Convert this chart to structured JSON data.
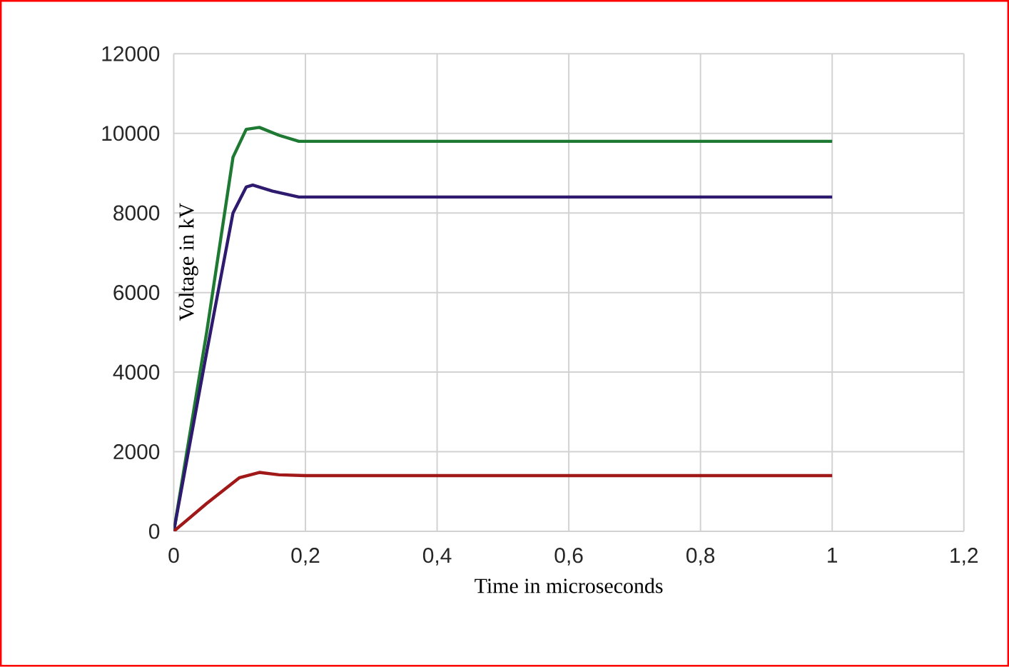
{
  "chart_data": {
    "type": "line",
    "xlabel": "Time in microseconds",
    "ylabel": "Voltage in kV",
    "xlim": [
      0,
      1.2
    ],
    "xticks": [
      {
        "value": 0,
        "label": "0"
      },
      {
        "value": 0.2,
        "label": "0,2"
      },
      {
        "value": 0.4,
        "label": "0,4"
      },
      {
        "value": 0.6,
        "label": "0,6"
      },
      {
        "value": 0.8,
        "label": "0,8"
      },
      {
        "value": 1,
        "label": "1"
      },
      {
        "value": 1.2,
        "label": "1,2"
      }
    ],
    "ylim": [
      0,
      12000
    ],
    "yticks": [
      0,
      2000,
      4000,
      6000,
      8000,
      10000,
      12000
    ],
    "grid": true,
    "marker": "none",
    "line_style": "solid",
    "series": [
      {
        "color": "#1e7a32",
        "x": [
          0,
          0.05,
          0.09,
          0.11,
          0.13,
          0.16,
          0.19,
          1
        ],
        "values": [
          0,
          5000,
          9400,
          10100,
          10150,
          9950,
          9800,
          9800
        ]
      },
      {
        "color": "#2e1a6e",
        "x": [
          0,
          0.05,
          0.09,
          0.11,
          0.12,
          0.15,
          0.19,
          1
        ],
        "values": [
          0,
          4500,
          8000,
          8650,
          8700,
          8550,
          8400,
          8400
        ]
      },
      {
        "color": "#a01818",
        "x": [
          0,
          0.05,
          0.1,
          0.13,
          0.16,
          0.2,
          1
        ],
        "values": [
          0,
          700,
          1350,
          1480,
          1420,
          1400,
          1400
        ]
      }
    ]
  }
}
